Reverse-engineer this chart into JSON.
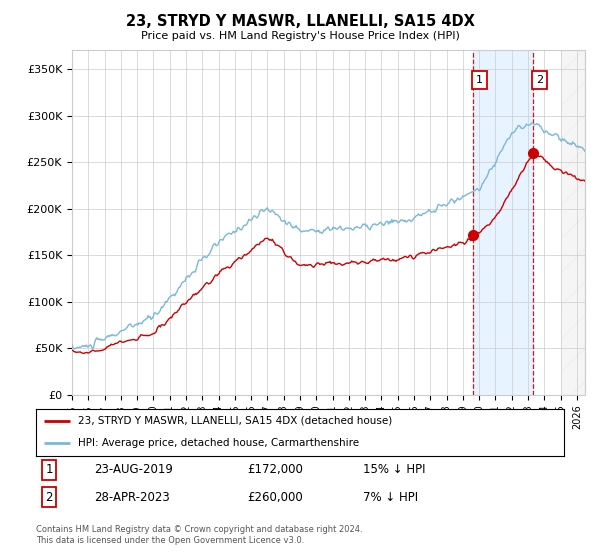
{
  "title": "23, STRYD Y MASWR, LLANELLI, SA15 4DX",
  "subtitle": "Price paid vs. HM Land Registry's House Price Index (HPI)",
  "ylabel_ticks": [
    "£0",
    "£50K",
    "£100K",
    "£150K",
    "£200K",
    "£250K",
    "£300K",
    "£350K"
  ],
  "ylim": [
    0,
    370000
  ],
  "xlim_start": 1995.0,
  "xlim_end": 2026.5,
  "hpi_color": "#7ab8d8",
  "price_color": "#cc0000",
  "sale1_date_x": 2019.645,
  "sale1_price": 172000,
  "sale2_date_x": 2023.33,
  "sale2_price": 260000,
  "sale1_label": "1",
  "sale2_label": "2",
  "legend_line1": "23, STRYD Y MASWR, LLANELLI, SA15 4DX (detached house)",
  "legend_line2": "HPI: Average price, detached house, Carmarthenshire",
  "table_row1": [
    "1",
    "23-AUG-2019",
    "£172,000",
    "15% ↓ HPI"
  ],
  "table_row2": [
    "2",
    "28-APR-2023",
    "£260,000",
    "7% ↓ HPI"
  ],
  "footer": "Contains HM Land Registry data © Crown copyright and database right 2024.\nThis data is licensed under the Open Government Licence v3.0.",
  "bg_color": "#ffffff",
  "grid_color": "#cccccc",
  "shade_color": "#ddeeff",
  "hatch_start": 2025.0
}
